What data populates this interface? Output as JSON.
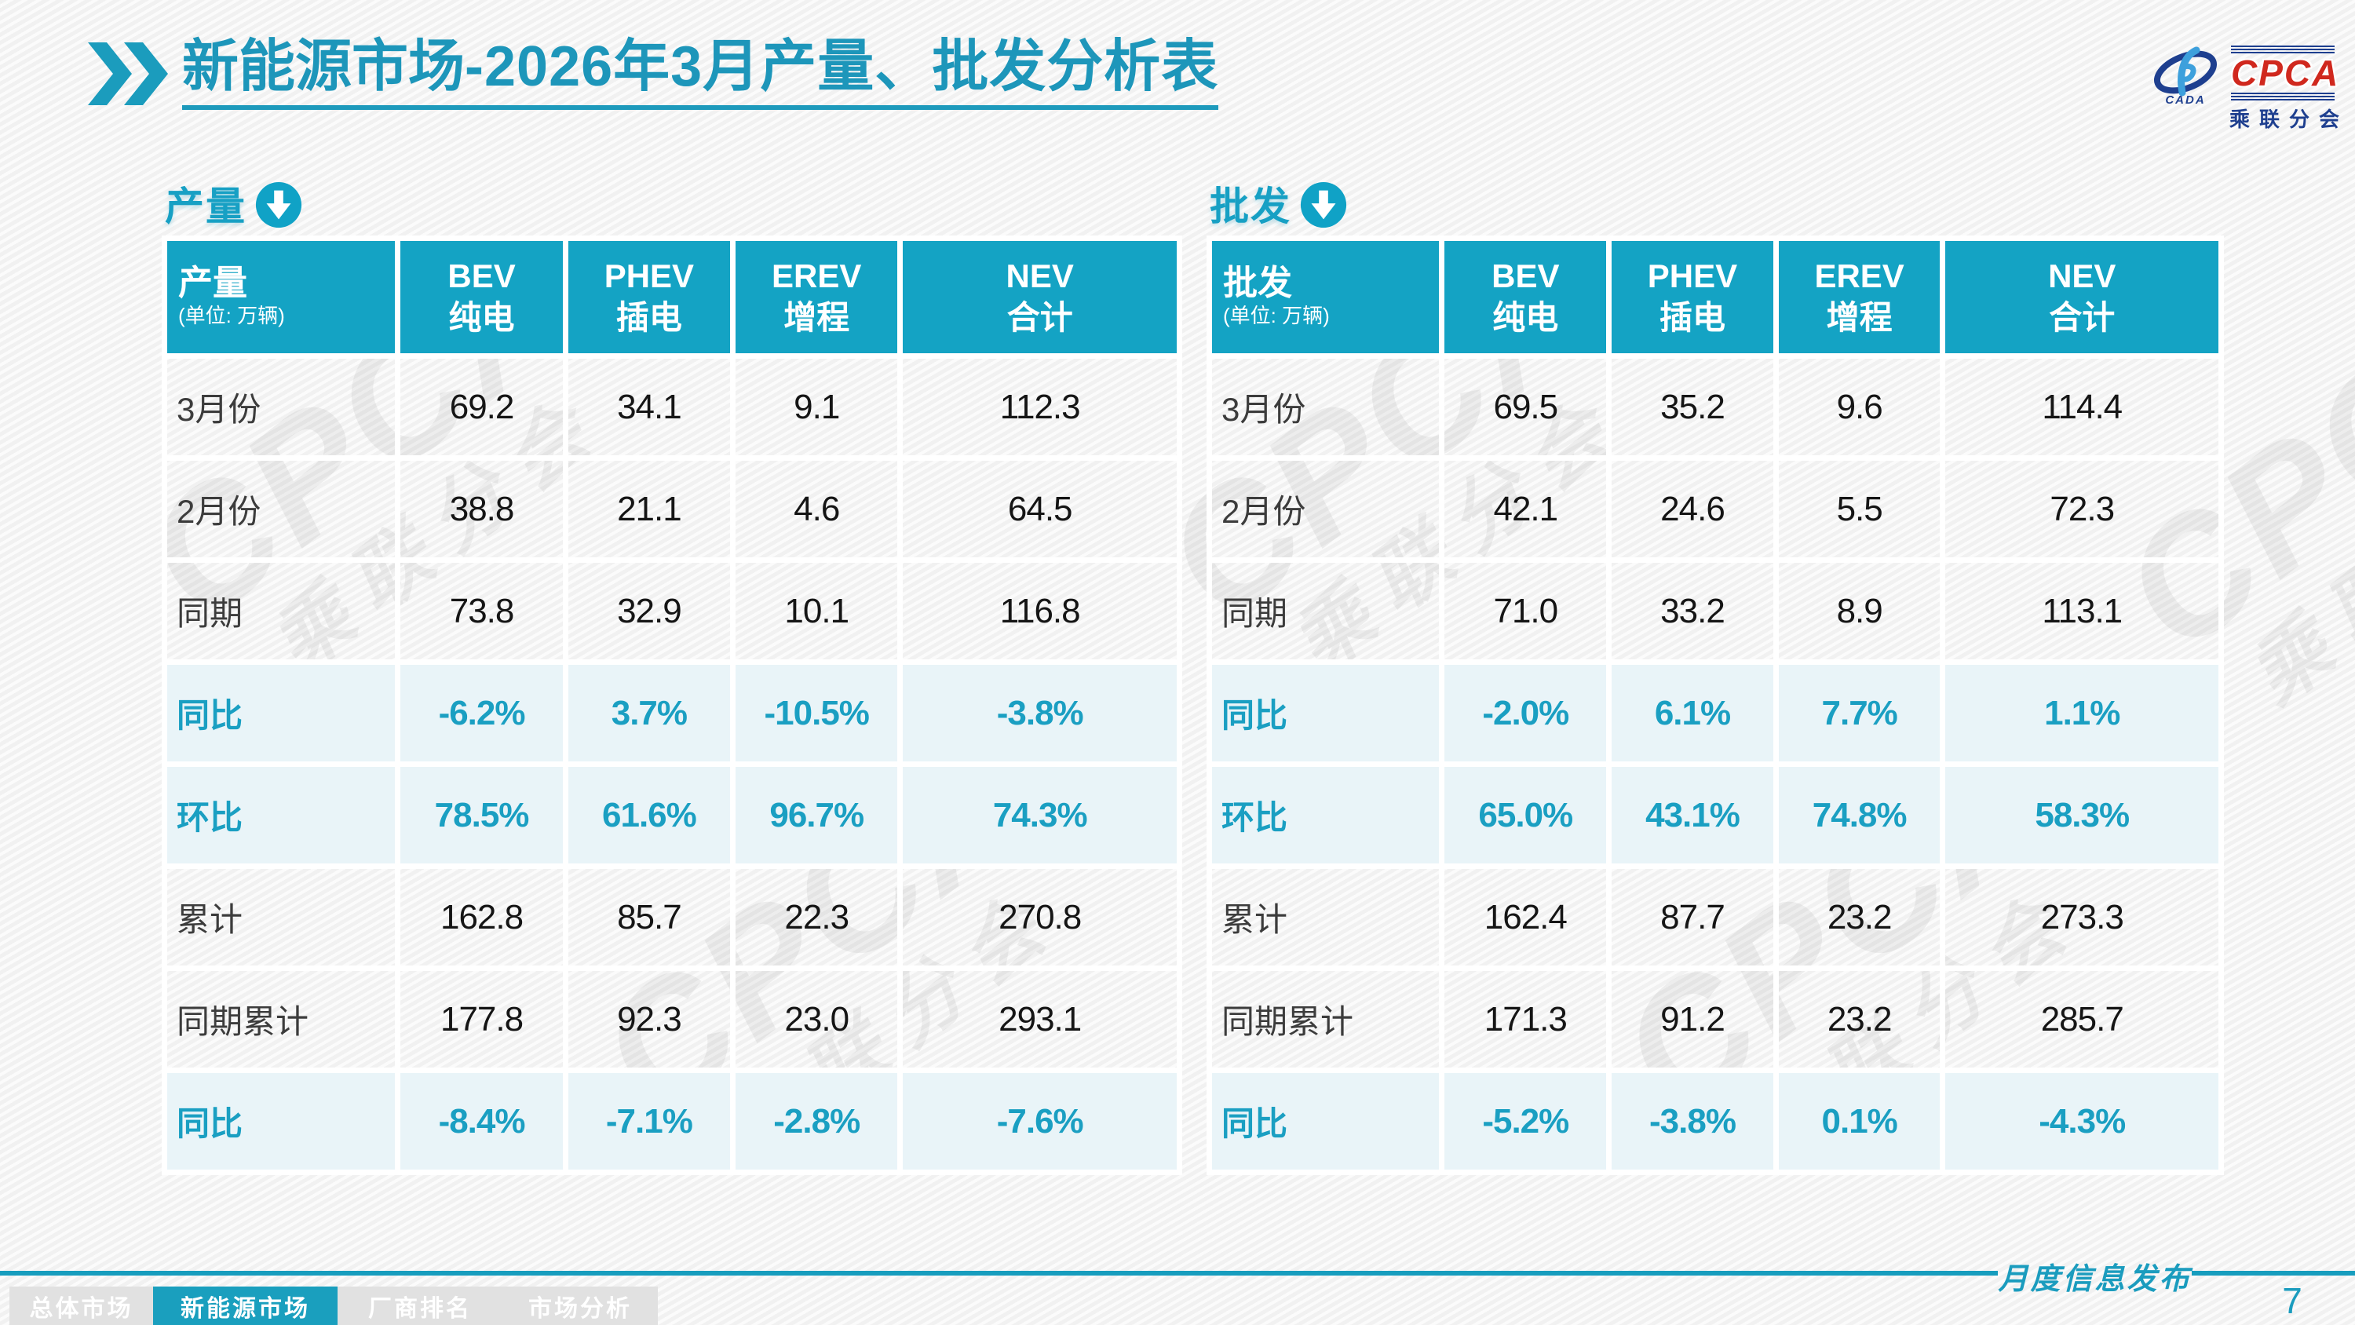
{
  "slide": {
    "title": {
      "emphasis": "新能源市场",
      "rest": "-2026年3月产量、批发分析表"
    },
    "footer": {
      "stamp": "月度信息发布",
      "page_number": "7"
    },
    "logo": {
      "cpca": "CPCA",
      "subtitle": "乘联分会",
      "cada": "CADA"
    },
    "watermark": {
      "line1": "CPCA",
      "line2": "乘联分会"
    }
  },
  "colors": {
    "accent_teal": "#17a0c4",
    "table_header_bg": "#14a3c4",
    "highlight_row_bg": "#e9f4f8",
    "nav_inactive_bg": "#e1e1e1",
    "logo_red": "#d0281e",
    "logo_navy": "#1e3f8f"
  },
  "nav": {
    "tabs": [
      {
        "label": "总体市场",
        "active": false
      },
      {
        "label": "新能源市场",
        "active": true
      },
      {
        "label": "厂商排名",
        "active": false
      },
      {
        "label": "市场分析",
        "active": false
      }
    ],
    "tab_widths": [
      183,
      235,
      210,
      198
    ]
  },
  "tables": [
    {
      "section_label": "产量",
      "section_icon": "down-arrow-circle",
      "header": {
        "title": "产量",
        "unit": "(单位: 万辆)",
        "columns": [
          {
            "l1": "BEV",
            "l2": "纯电"
          },
          {
            "l1": "PHEV",
            "l2": "插电"
          },
          {
            "l1": "EREV",
            "l2": "增程"
          },
          {
            "l1": "NEV",
            "l2": "合计"
          }
        ]
      },
      "rows": [
        {
          "label": "3月份",
          "values": [
            "69.2",
            "34.1",
            "9.1",
            "112.3"
          ],
          "highlight": false
        },
        {
          "label": "2月份",
          "values": [
            "38.8",
            "21.1",
            "4.6",
            "64.5"
          ],
          "highlight": false
        },
        {
          "label": "同期",
          "values": [
            "73.8",
            "32.9",
            "10.1",
            "116.8"
          ],
          "highlight": false
        },
        {
          "label": "同比",
          "values": [
            "-6.2%",
            "3.7%",
            "-10.5%",
            "-3.8%"
          ],
          "highlight": true
        },
        {
          "label": "环比",
          "values": [
            "78.5%",
            "61.6%",
            "96.7%",
            "74.3%"
          ],
          "highlight": true
        },
        {
          "label": "累计",
          "values": [
            "162.8",
            "85.7",
            "22.3",
            "270.8"
          ],
          "highlight": false
        },
        {
          "label": "同期累计",
          "values": [
            "177.8",
            "92.3",
            "23.0",
            "293.1"
          ],
          "highlight": false
        },
        {
          "label": "同比",
          "values": [
            "-8.4%",
            "-7.1%",
            "-2.8%",
            "-7.6%"
          ],
          "highlight": true
        }
      ]
    },
    {
      "section_label": "批发",
      "section_icon": "down-arrow-circle",
      "header": {
        "title": "批发",
        "unit": "(单位: 万辆)",
        "columns": [
          {
            "l1": "BEV",
            "l2": "纯电"
          },
          {
            "l1": "PHEV",
            "l2": "插电"
          },
          {
            "l1": "EREV",
            "l2": "增程"
          },
          {
            "l1": "NEV",
            "l2": "合计"
          }
        ]
      },
      "rows": [
        {
          "label": "3月份",
          "values": [
            "69.5",
            "35.2",
            "9.6",
            "114.4"
          ],
          "highlight": false
        },
        {
          "label": "2月份",
          "values": [
            "42.1",
            "24.6",
            "5.5",
            "72.3"
          ],
          "highlight": false
        },
        {
          "label": "同期",
          "values": [
            "71.0",
            "33.2",
            "8.9",
            "113.1"
          ],
          "highlight": false
        },
        {
          "label": "同比",
          "values": [
            "-2.0%",
            "6.1%",
            "7.7%",
            "1.1%"
          ],
          "highlight": true
        },
        {
          "label": "环比",
          "values": [
            "65.0%",
            "43.1%",
            "74.8%",
            "58.3%"
          ],
          "highlight": true
        },
        {
          "label": "累计",
          "values": [
            "162.4",
            "87.7",
            "23.2",
            "273.3"
          ],
          "highlight": false
        },
        {
          "label": "同期累计",
          "values": [
            "171.3",
            "91.2",
            "23.2",
            "285.7"
          ],
          "highlight": false
        },
        {
          "label": "同比",
          "values": [
            "-5.2%",
            "-3.8%",
            "0.1%",
            "-4.3%"
          ],
          "highlight": true
        }
      ]
    }
  ]
}
